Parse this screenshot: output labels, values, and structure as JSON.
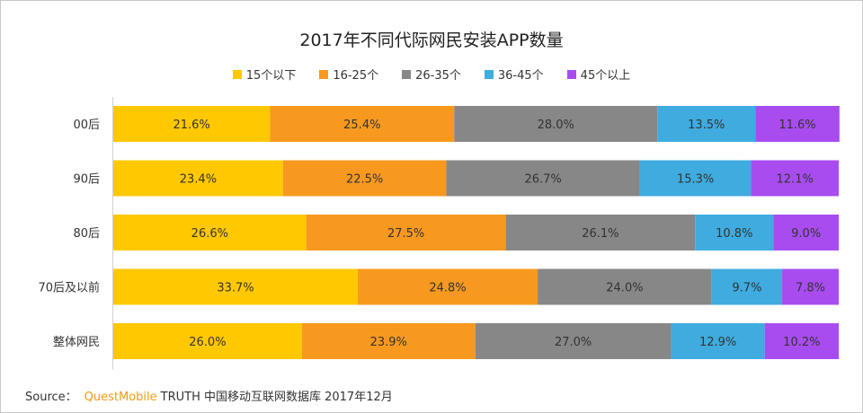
{
  "chart_data": {
    "type": "bar",
    "orientation": "horizontal",
    "stacked": true,
    "title": "2017年不同代际网民安装APP数量",
    "categories": [
      "00后",
      "90后",
      "80后",
      "70后及以前",
      "整体网民"
    ],
    "series": [
      {
        "name": "15个以下",
        "color": "#ffc800",
        "values": [
          21.6,
          23.4,
          26.6,
          33.7,
          26.0
        ]
      },
      {
        "name": "16-25个",
        "color": "#f7991f",
        "values": [
          25.4,
          22.5,
          27.5,
          24.8,
          23.9
        ]
      },
      {
        "name": "26-35个",
        "color": "#878787",
        "values": [
          28.0,
          26.7,
          26.1,
          24.0,
          27.0
        ]
      },
      {
        "name": "36-45个",
        "color": "#3fabdf",
        "values": [
          13.5,
          15.3,
          10.8,
          9.7,
          12.9
        ]
      },
      {
        "name": "45个以上",
        "color": "#a84cf0",
        "values": [
          11.6,
          12.1,
          9.0,
          7.8,
          10.2
        ]
      }
    ],
    "value_suffix": "%",
    "legend_position": "top",
    "grid": false,
    "xlim": [
      0,
      100
    ]
  },
  "source": {
    "prefix": "Source：",
    "brand": "QuestMobile",
    "rest": "TRUTH 中国移动互联网数据库 2017年12月"
  }
}
